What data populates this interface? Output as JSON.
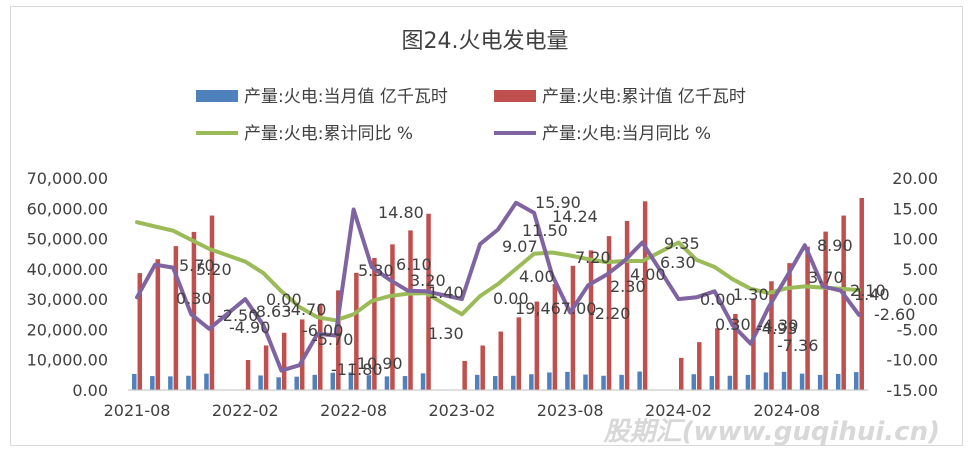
{
  "chart_data": {
    "type": "bar+line",
    "title": "图24.火电发电量",
    "x_tick_labels": [
      "2021-08",
      "2022-02",
      "2022-08",
      "2023-02",
      "2023-08",
      "2024-02",
      "2024-08"
    ],
    "x_ticks": [
      "2021-08",
      "2022-02",
      "2022-08",
      "2023-02",
      "2023-08",
      "2024-02",
      "2024-08"
    ],
    "y_left": {
      "min": 0,
      "max": 70000,
      "step": 10000,
      "tick_labels": [
        "0.00",
        "10,000.00",
        "20,000.00",
        "30,000.00",
        "40,000.00",
        "50,000.00",
        "60,000.00",
        "70,000.00"
      ]
    },
    "y_right": {
      "min": -15,
      "max": 20,
      "step": 5,
      "tick_labels": [
        "-15.00",
        "-10.00",
        "-5.00",
        "0.00",
        "5.00",
        "10.00",
        "15.00",
        "20.00"
      ]
    },
    "months": [
      "2021-08",
      "2021-09",
      "2021-10",
      "2021-11",
      "2021-12",
      "2022-01",
      "2022-02",
      "2022-03",
      "2022-04",
      "2022-05",
      "2022-06",
      "2022-07",
      "2022-08",
      "2022-09",
      "2022-10",
      "2022-11",
      "2022-12",
      "2023-01",
      "2023-02",
      "2023-03",
      "2023-04",
      "2023-05",
      "2023-06",
      "2023-07",
      "2023-08",
      "2023-09",
      "2023-10",
      "2023-11",
      "2023-12",
      "2024-01",
      "2024-02",
      "2024-03",
      "2024-04",
      "2024-05",
      "2024-06",
      "2024-07",
      "2024-08",
      "2024-09",
      "2024-10",
      "2024-11",
      "2024-12"
    ],
    "series": [
      {
        "name": "产量:火电:当月值 亿千瓦时",
        "kind": "bar",
        "axis": "left",
        "color": "#4f81bd",
        "values": [
          5300,
          4600,
          4500,
          4700,
          5400,
          null,
          null,
          4800,
          4200,
          4400,
          5000,
          5700,
          5800,
          4900,
          4500,
          4600,
          5500,
          null,
          null,
          5000,
          4600,
          4700,
          5200,
          5800,
          6000,
          5100,
          4700,
          5000,
          6100,
          null,
          null,
          5200,
          4600,
          4700,
          5000,
          5800,
          6000,
          5400,
          5000,
          5300,
          5900
        ]
      },
      {
        "name": "产量:火电:累计值 亿千瓦时",
        "kind": "bar",
        "axis": "left",
        "color": "#c0504d",
        "values": [
          38600,
          43200,
          47500,
          52200,
          57600,
          null,
          9900,
          14700,
          18900,
          23300,
          28300,
          32900,
          38700,
          43600,
          48100,
          52700,
          58200,
          null,
          9600,
          14700,
          19300,
          24000,
          29200,
          35000,
          41000,
          46100,
          50800,
          55800,
          62300,
          null,
          10600,
          15800,
          20400,
          25100,
          30100,
          35900,
          41900,
          47300,
          52300,
          57600,
          63400
        ]
      },
      {
        "name": "产量:火电:累计同比 %",
        "kind": "line",
        "axis": "right",
        "color": "#9bbb59",
        "values": [
          12.7,
          12.0,
          11.3,
          9.8,
          8.3,
          null,
          6.2,
          4.3,
          1.3,
          -1.3,
          -3.0,
          -3.5,
          -2.5,
          -0.3,
          0.5,
          0.9,
          1.0,
          null,
          -2.5,
          0.5,
          2.5,
          5.0,
          7.5,
          7.7,
          7.2,
          6.6,
          6.1,
          6.3,
          6.3,
          null,
          9.35,
          6.5,
          5.3,
          3.3,
          1.7,
          1.0,
          1.8,
          2.1,
          1.9,
          1.7,
          1.5
        ]
      },
      {
        "name": "产量:火电:当月同比 %",
        "kind": "line",
        "axis": "right",
        "color": "#8064a2",
        "values": [
          0.3,
          5.7,
          5.2,
          -2.5,
          -4.9,
          null,
          0.0,
          -4.3,
          -11.8,
          -10.9,
          -5.7,
          -6.0,
          14.8,
          5.3,
          3.2,
          1.4,
          1.3,
          null,
          0.0,
          9.07,
          11.5,
          15.9,
          14.24,
          4.0,
          -2.2,
          2.3,
          4.0,
          6.3,
          9.35,
          null,
          0.0,
          0.3,
          1.3,
          -4.3,
          -7.36,
          -1.3,
          3.7,
          8.9,
          2.1,
          1.4,
          -2.6
        ]
      }
    ],
    "data_labels": [
      "0.30",
      "5.70",
      "5.20",
      "-2.50",
      "-4.90",
      "0.00",
      "-8.63",
      "-4.70",
      "-5.70",
      "-11.80",
      "-10.90",
      "-6.00",
      "5.30",
      "14.80",
      "6.10",
      "3.20",
      "1.40",
      "1.30",
      "19,467.00",
      "0.00",
      "9.07",
      "11.50",
      "15.90",
      "14.24",
      "4.00",
      "7.20",
      "-2.20",
      "2.30",
      "4.00",
      "6.30",
      "9.35",
      "0.00",
      "0.30",
      "1.30",
      "-4.30",
      "-7.36",
      "-4.93",
      "3.70",
      "8.90",
      "2.10",
      "1.40",
      "-2.60"
    ],
    "annotations": [
      "-2.50",
      "-4.90",
      "0.00",
      "-4.70",
      "-5.70",
      "-11.80",
      "-10.90",
      "-6.00",
      "5.30",
      "14.80",
      "6.10",
      "3.20",
      "1.40",
      "1.30",
      "19,467.00",
      "0.00",
      "9.07",
      "11.50",
      "15.90",
      "14.24",
      "4.00",
      "7.20",
      "-2.20",
      "2.30",
      "4.00",
      "6.30",
      "9.35",
      "0.00",
      "0.30",
      "1.30",
      "-4.30",
      "-7.36",
      "-4.93",
      "3.70",
      "8.90",
      "2.10",
      "1.40",
      "-2.60"
    ],
    "legend_position": "top"
  },
  "legend": {
    "monthly_value": "产量:火电:当月值 亿千瓦时",
    "cumulative_value": "产量:火电:累计值 亿千瓦时",
    "cumulative_yoy": "产量:火电:累计同比 %",
    "monthly_yoy": "产量:火电:当月同比 %"
  },
  "watermark": "股期汇(www.guqihui.cn)"
}
